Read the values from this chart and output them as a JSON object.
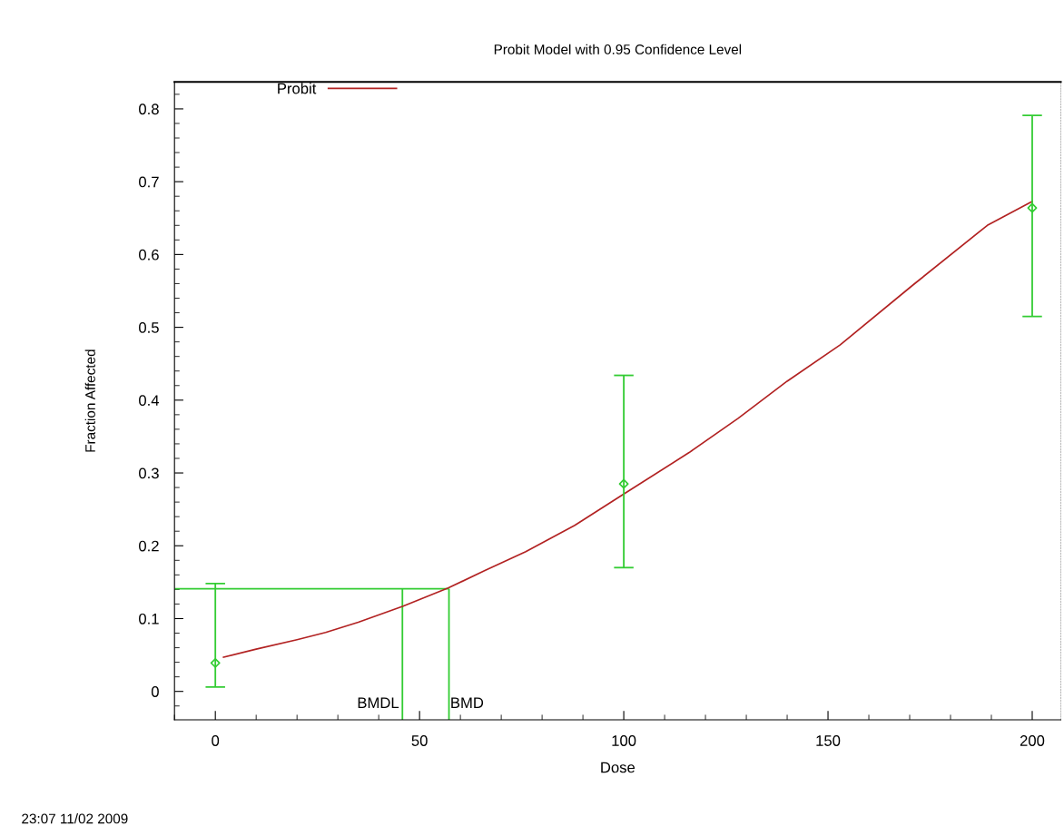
{
  "chart_data": {
    "type": "scatter",
    "title": "Probit Model with 0.95 Confidence Level",
    "xlabel": "Dose",
    "ylabel": "Fraction Affected",
    "xlim": [
      -10,
      207
    ],
    "ylim": [
      -0.039,
      0.837
    ],
    "xticks": [
      0,
      50,
      100,
      150,
      200
    ],
    "yticks": [
      0,
      0.1,
      0.2,
      0.3,
      0.4,
      0.5,
      0.6,
      0.7,
      0.8
    ],
    "grid": false,
    "legend": "top left",
    "series": [
      {
        "type": "line",
        "name": "Probit",
        "color": "#b22222",
        "x": [
          2,
          10,
          20,
          27,
          35,
          46,
          57,
          66,
          76,
          88,
          100,
          116,
          128,
          140,
          153,
          171,
          189,
          200
        ],
        "values": [
          0.047,
          0.058,
          0.071,
          0.081,
          0.095,
          0.117,
          0.142,
          0.166,
          0.192,
          0.228,
          0.271,
          0.328,
          0.375,
          0.426,
          0.476,
          0.559,
          0.64,
          0.673
        ]
      },
      {
        "color": "#33cc33",
        "marker": "diamond",
        "x": [
          0,
          100,
          200
        ],
        "values": [
          0.039,
          0.285,
          0.664
        ],
        "errors": [
          [
            0.006,
            0.148
          ],
          [
            0.17,
            0.434
          ],
          [
            0.515,
            0.791
          ]
        ]
      }
    ],
    "ref_lines": [
      {
        "axis": "y",
        "value": 0.141,
        "color": "#33cc33"
      },
      {
        "axis": "x",
        "value": 45.8,
        "label": "BMDL",
        "color": "#33cc33"
      },
      {
        "axis": "x",
        "value": 57.2,
        "label": "BMD",
        "color": "#33cc33"
      }
    ],
    "annotations": [
      "23:07 11/02 2009"
    ]
  }
}
